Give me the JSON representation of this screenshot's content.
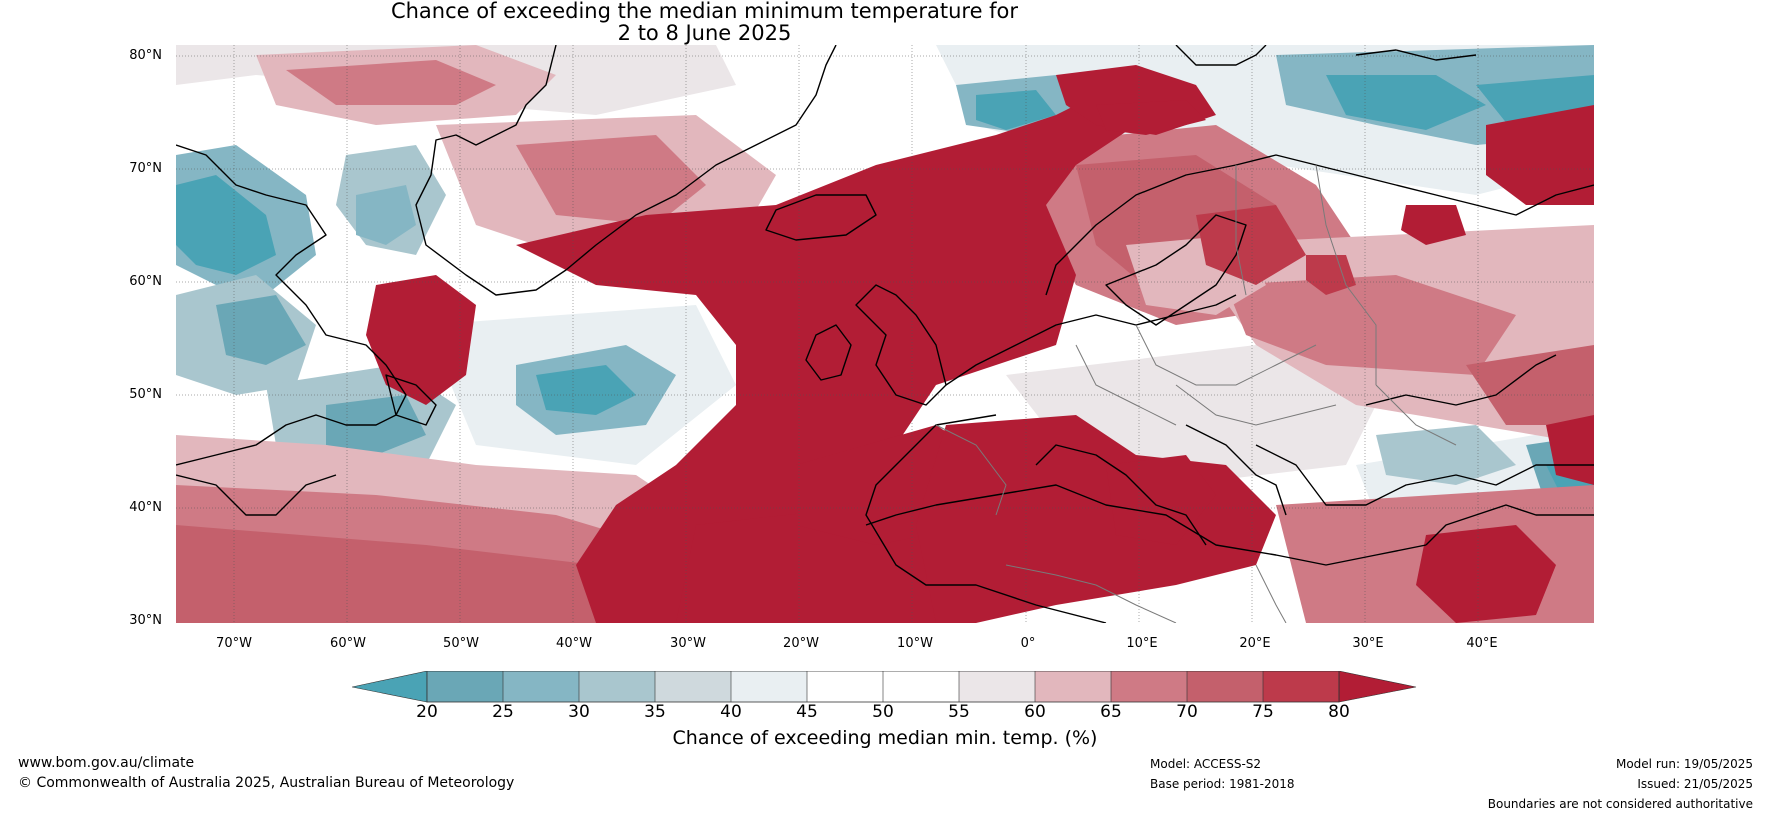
{
  "title": {
    "line1": "Chance of exceeding the median minimum temperature for",
    "line2": "2 to 8 June 2025"
  },
  "map": {
    "latitude_labels": [
      "80°N",
      "70°N",
      "60°N",
      "50°N",
      "40°N",
      "30°N"
    ],
    "longitude_labels": [
      "70°W",
      "60°W",
      "50°W",
      "40°W",
      "30°W",
      "20°W",
      "10°W",
      "0°",
      "10°E",
      "20°E",
      "30°E",
      "40°E"
    ],
    "colors": {
      "below_20": "#4aa3b5",
      "20_25": "#6aa7b6",
      "25_30": "#85b6c4",
      "30_35": "#a9c6ce",
      "35_40": "#cfd9dd",
      "40_45": "#e9eff2",
      "45_55": "#ffffff",
      "55_60": "#ebe6e8",
      "60_65": "#e2b7bd",
      "65_70": "#cf7a85",
      "70_75": "#c4606c",
      "75_80": "#bd3a4b",
      "above_80": "#b21d35",
      "coastline": "#000000",
      "border": "#7a7a7a"
    }
  },
  "colorbar": {
    "ticks": [
      "20",
      "25",
      "30",
      "35",
      "40",
      "45",
      "50",
      "55",
      "60",
      "65",
      "70",
      "75",
      "80"
    ],
    "label": "Chance of exceeding median min. temp. (%)"
  },
  "footer": {
    "website": "www.bom.gov.au/climate",
    "copyright": "© Commonwealth of Australia 2025, Australian Bureau of Meteorology",
    "model": "Model: ACCESS-S2",
    "base_period": "Base period: 1981-2018",
    "model_run": "Model run: 19/05/2025",
    "issued": "Issued: 21/05/2025",
    "disclaimer": "Boundaries are not considered authoritative"
  }
}
